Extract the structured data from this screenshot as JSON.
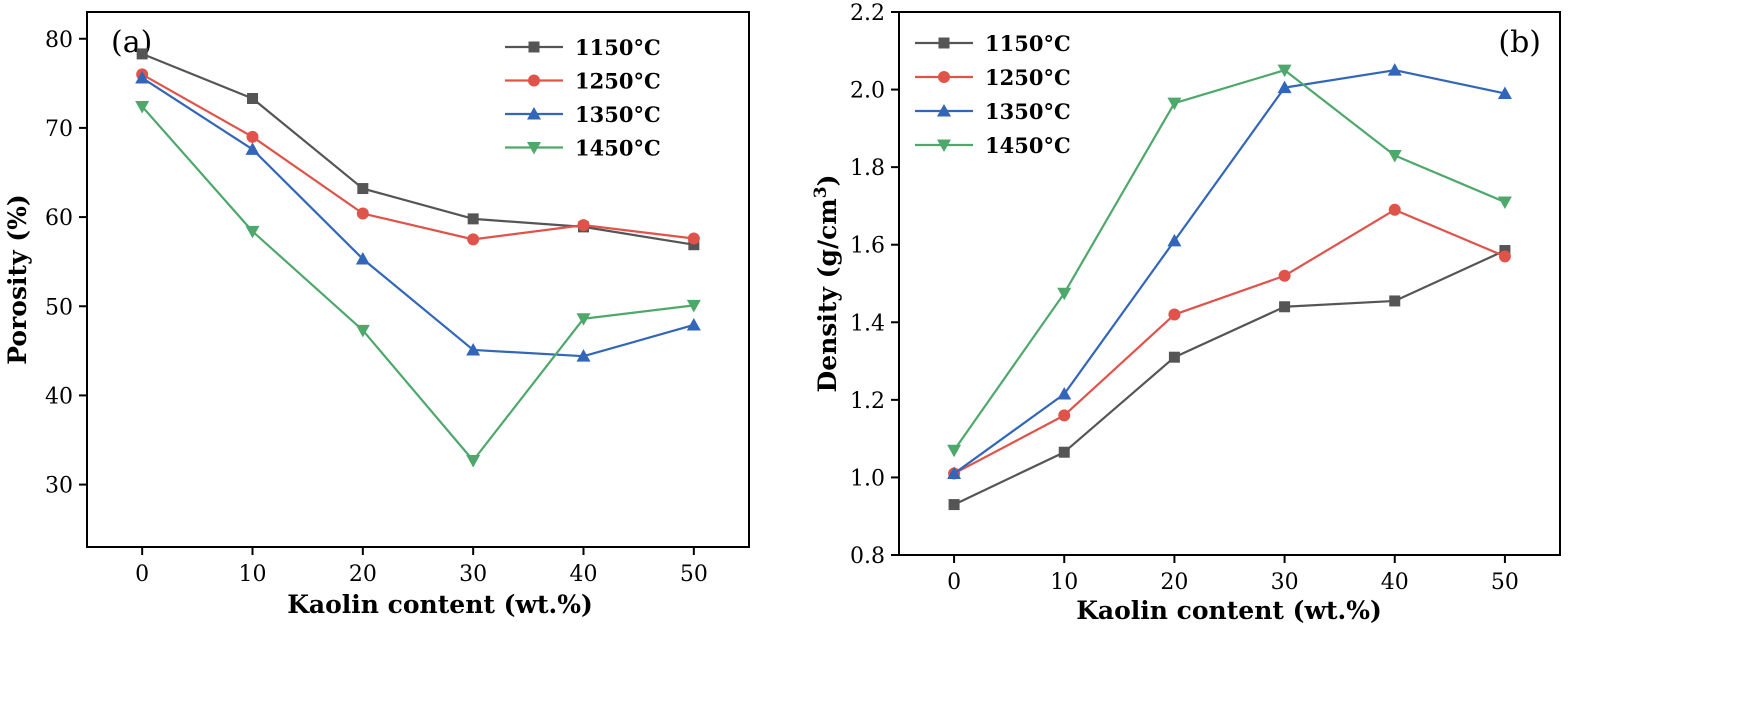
{
  "chart_data": [
    {
      "panel_label": "(a)",
      "type": "line",
      "xlabel": "Kaolin content (wt.%)",
      "ylabel": "Porosity (%)",
      "x": [
        0,
        10,
        20,
        30,
        40,
        50
      ],
      "xlim": [
        -5,
        55
      ],
      "ylim": [
        23,
        83
      ],
      "x_ticks": [
        0,
        10,
        20,
        30,
        40,
        50
      ],
      "y_ticks": [
        30,
        40,
        50,
        60,
        70,
        80
      ],
      "legend_position": "top-right",
      "grid": false,
      "series": [
        {
          "name": "1150°C",
          "color": "#555555",
          "marker": "square",
          "values": [
            78.3,
            73.3,
            63.2,
            59.8,
            58.9,
            56.9
          ]
        },
        {
          "name": "1250°C",
          "color": "#e0534b",
          "marker": "circle",
          "values": [
            76.0,
            69.0,
            60.4,
            57.5,
            59.1,
            57.6
          ]
        },
        {
          "name": "1350°C",
          "color": "#3266b8",
          "marker": "triangle-up",
          "values": [
            75.6,
            67.6,
            55.3,
            45.1,
            44.4,
            47.9
          ]
        },
        {
          "name": "1450°C",
          "color": "#4ea86b",
          "marker": "triangle-down",
          "values": [
            72.4,
            58.4,
            47.3,
            32.7,
            48.6,
            50.1
          ]
        }
      ]
    },
    {
      "panel_label": "(b)",
      "type": "line",
      "xlabel": "Kaolin content (wt.%)",
      "ylabel_main": "Density (g/cm",
      "ylabel_sup": "3",
      "ylabel_end": ")",
      "x": [
        0,
        10,
        20,
        30,
        40,
        50
      ],
      "xlim": [
        -5,
        55
      ],
      "ylim": [
        0.8,
        2.2
      ],
      "x_ticks": [
        0,
        10,
        20,
        30,
        40,
        50
      ],
      "y_ticks": [
        "0.8",
        "1.0",
        "1.2",
        "1.4",
        "1.6",
        "1.8",
        "2.0",
        "2.2"
      ],
      "legend_position": "top-left",
      "grid": false,
      "series": [
        {
          "name": "1150°C",
          "color": "#555555",
          "marker": "square",
          "values": [
            0.93,
            1.065,
            1.31,
            1.44,
            1.455,
            1.585
          ]
        },
        {
          "name": "1250°C",
          "color": "#e0534b",
          "marker": "circle",
          "values": [
            1.01,
            1.16,
            1.42,
            1.52,
            1.69,
            1.57
          ]
        },
        {
          "name": "1350°C",
          "color": "#3266b8",
          "marker": "triangle-up",
          "values": [
            1.01,
            1.215,
            1.61,
            2.005,
            2.05,
            1.99
          ]
        },
        {
          "name": "1450°C",
          "color": "#4ea86b",
          "marker": "triangle-down",
          "values": [
            1.07,
            1.475,
            1.965,
            2.05,
            1.83,
            1.71
          ]
        }
      ]
    }
  ]
}
